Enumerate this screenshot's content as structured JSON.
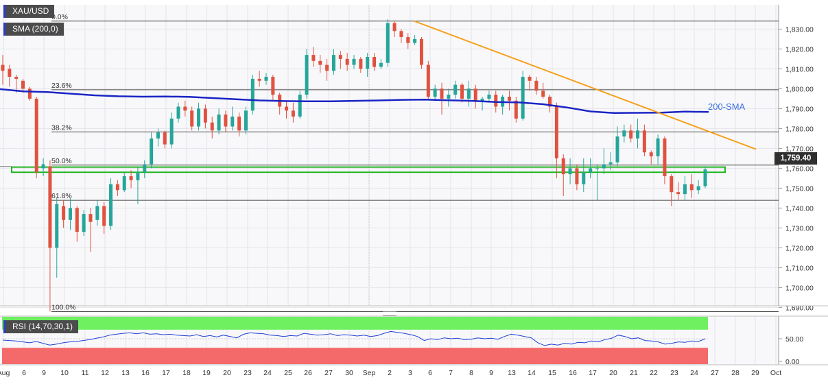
{
  "chart": {
    "symbol": "XAU/USD",
    "sma_legend": "SMA (200,0)",
    "sma_label": "200-SMA",
    "current_price_label": "1,759.40",
    "rsi_legend": "RSI (14,70,30,1)",
    "colors": {
      "bull": "#26a69a",
      "bear": "#e0523f",
      "sma": "#1a24c4",
      "trendline": "#f5a11a",
      "zone": "#21b521",
      "rsi_line": "#1f3fd4",
      "rsi_overbought": "#6ef060",
      "rsi_oversold": "#f46a6a"
    }
  },
  "chart_data": [
    {
      "type": "candlestick",
      "title": "XAU/USD",
      "ylim": [
        1685,
        1838
      ],
      "y_ticks": [
        "1,830.00",
        "1,820.00",
        "1,810.00",
        "1,800.00",
        "1,790.00",
        "1,780.00",
        "1,770.00",
        "1,760.00",
        "1,750.00",
        "1,740.00",
        "1,730.00",
        "1,720.00",
        "1,710.00",
        "1,700.00",
        "1,690.00"
      ],
      "x_ticks": [
        "Aug",
        "6",
        "9",
        "10",
        "11",
        "12",
        "13",
        "16",
        "17",
        "18",
        "19",
        "20",
        "23",
        "24",
        "25",
        "26",
        "27",
        "30",
        "Sep",
        "2",
        "3",
        "6",
        "7",
        "8",
        "9",
        "13",
        "14",
        "15",
        "16",
        "17",
        "20",
        "21",
        "22",
        "23",
        "24",
        "27",
        "28",
        "29",
        "Oct"
      ],
      "fibonacci": [
        {
          "label": "0.0%",
          "price": 1834.0
        },
        {
          "label": "23.6%",
          "price": 1799.5
        },
        {
          "label": "38.2%",
          "price": 1778.3
        },
        {
          "label": "50.0%",
          "price": 1761.6
        },
        {
          "label": "61.8%",
          "price": 1743.9
        },
        {
          "label": "100.0%",
          "price": 1687.9
        }
      ],
      "support_zone": [
        1758.0,
        1760.6
      ],
      "sma_200": [
        1799.8,
        1798.7,
        1798.3,
        1797.5,
        1796.7,
        1796.2,
        1796.0,
        1796.1,
        1795.9,
        1795.3,
        1794.7,
        1794.1,
        1793.8,
        1793.7,
        1793.7,
        1793.9,
        1794.1,
        1794.4,
        1794.5,
        1794.2,
        1793.9,
        1793.3,
        1793.1,
        1792.2,
        1790.6,
        1788.6,
        1787.8,
        1787.9,
        1788.0,
        1788.5,
        1788.3
      ],
      "trendline": {
        "from": 1834.0,
        "to": 1769.6
      },
      "candles": [
        [
          1812,
          1809,
          1817,
          1802
        ],
        [
          1810,
          1806,
          1812,
          1801
        ],
        [
          1806,
          1805,
          1807,
          1798
        ],
        [
          1804,
          1800,
          1805,
          1798
        ],
        [
          1800,
          1795,
          1801,
          1794
        ],
        [
          1795,
          1758,
          1796,
          1755
        ],
        [
          1760,
          1762,
          1765,
          1756
        ],
        [
          1761,
          1720,
          1764,
          1688
        ],
        [
          1720,
          1742,
          1745,
          1705
        ],
        [
          1741,
          1734,
          1744,
          1730
        ],
        [
          1734,
          1740,
          1745,
          1729
        ],
        [
          1740,
          1728,
          1741,
          1723
        ],
        [
          1728,
          1737,
          1739,
          1726
        ],
        [
          1737,
          1733,
          1740,
          1718
        ],
        [
          1734,
          1741,
          1744,
          1731
        ],
        [
          1741,
          1731,
          1743,
          1727
        ],
        [
          1731,
          1752,
          1755,
          1729
        ],
        [
          1752,
          1749,
          1754,
          1746
        ],
        [
          1749,
          1756,
          1758,
          1748
        ],
        [
          1756,
          1754,
          1759,
          1750
        ],
        [
          1754,
          1758,
          1761,
          1742
        ],
        [
          1758,
          1762,
          1764,
          1755
        ],
        [
          1762,
          1775,
          1778,
          1760
        ],
        [
          1775,
          1778,
          1780,
          1771
        ],
        [
          1778,
          1772,
          1779,
          1770
        ],
        [
          1772,
          1785,
          1788,
          1770
        ],
        [
          1785,
          1791,
          1793,
          1783
        ],
        [
          1791,
          1789,
          1794,
          1786
        ],
        [
          1789,
          1781,
          1791,
          1779
        ],
        [
          1781,
          1790,
          1793,
          1779
        ],
        [
          1790,
          1783,
          1792,
          1780
        ],
        [
          1783,
          1779,
          1786,
          1775
        ],
        [
          1779,
          1787,
          1790,
          1777
        ],
        [
          1787,
          1781,
          1789,
          1778
        ],
        [
          1781,
          1786,
          1791,
          1779
        ],
        [
          1786,
          1779,
          1788,
          1776
        ],
        [
          1779,
          1789,
          1791,
          1777
        ],
        [
          1789,
          1805,
          1807,
          1787
        ],
        [
          1805,
          1804,
          1809,
          1801
        ],
        [
          1804,
          1806,
          1808,
          1802
        ],
        [
          1806,
          1797,
          1807,
          1794
        ],
        [
          1797,
          1791,
          1798,
          1787
        ],
        [
          1791,
          1789,
          1794,
          1785
        ],
        [
          1789,
          1786,
          1793,
          1783
        ],
        [
          1786,
          1797,
          1799,
          1785
        ],
        [
          1797,
          1817,
          1820,
          1795
        ],
        [
          1817,
          1814,
          1821,
          1811
        ],
        [
          1814,
          1812,
          1817,
          1808
        ],
        [
          1812,
          1809,
          1815,
          1804
        ],
        [
          1809,
          1817,
          1820,
          1807
        ],
        [
          1817,
          1815,
          1819,
          1810
        ],
        [
          1815,
          1812,
          1818,
          1809
        ],
        [
          1812,
          1815,
          1817,
          1810
        ],
        [
          1815,
          1810,
          1816,
          1808
        ],
        [
          1810,
          1816,
          1818,
          1806
        ],
        [
          1816,
          1811,
          1818,
          1809
        ],
        [
          1811,
          1813,
          1815,
          1810
        ],
        [
          1813,
          1833,
          1835,
          1811
        ],
        [
          1833,
          1829,
          1834,
          1826
        ],
        [
          1829,
          1826,
          1830,
          1823
        ],
        [
          1826,
          1823,
          1828,
          1820
        ],
        [
          1823,
          1825,
          1827,
          1822
        ],
        [
          1825,
          1812,
          1826,
          1810
        ],
        [
          1812,
          1796,
          1814,
          1795
        ],
        [
          1796,
          1800,
          1802,
          1794
        ],
        [
          1800,
          1795,
          1803,
          1787
        ],
        [
          1795,
          1797,
          1800,
          1791
        ],
        [
          1797,
          1802,
          1804,
          1795
        ],
        [
          1802,
          1795,
          1803,
          1793
        ],
        [
          1795,
          1800,
          1804,
          1791
        ],
        [
          1800,
          1794,
          1802,
          1790
        ],
        [
          1794,
          1795,
          1796,
          1789
        ],
        [
          1795,
          1797,
          1799,
          1793
        ],
        [
          1797,
          1791,
          1799,
          1788
        ],
        [
          1791,
          1796,
          1797,
          1787
        ],
        [
          1796,
          1794,
          1799,
          1789
        ],
        [
          1794,
          1785,
          1796,
          1783
        ],
        [
          1785,
          1806,
          1809,
          1784
        ],
        [
          1806,
          1804,
          1807,
          1799
        ],
        [
          1804,
          1799,
          1806,
          1797
        ],
        [
          1799,
          1796,
          1803,
          1795
        ],
        [
          1796,
          1791,
          1797,
          1788
        ],
        [
          1791,
          1765,
          1793,
          1755
        ],
        [
          1765,
          1757,
          1767,
          1746
        ],
        [
          1757,
          1760,
          1765,
          1752
        ],
        [
          1760,
          1752,
          1762,
          1749
        ],
        [
          1752,
          1758,
          1765,
          1748
        ],
        [
          1758,
          1760,
          1765,
          1755
        ],
        [
          1760,
          1760,
          1762,
          1744
        ],
        [
          1760,
          1762,
          1770,
          1757
        ],
        [
          1762,
          1763,
          1768,
          1759
        ],
        [
          1763,
          1776,
          1781,
          1761
        ],
        [
          1776,
          1779,
          1782,
          1773
        ],
        [
          1779,
          1775,
          1782,
          1773
        ],
        [
          1775,
          1779,
          1785,
          1770
        ],
        [
          1779,
          1768,
          1782,
          1766
        ],
        [
          1768,
          1766,
          1769,
          1762
        ],
        [
          1766,
          1775,
          1777,
          1762
        ],
        [
          1775,
          1756,
          1776,
          1752
        ],
        [
          1756,
          1748,
          1757,
          1741
        ],
        [
          1748,
          1747,
          1753,
          1744
        ],
        [
          1747,
          1752,
          1756,
          1744
        ],
        [
          1752,
          1749,
          1757,
          1745
        ],
        [
          1749,
          1751,
          1754,
          1747
        ],
        [
          1751,
          1759.4,
          1761,
          1750
        ]
      ]
    },
    {
      "type": "line",
      "title": "RSI (14,70,30,1)",
      "ylim": [
        0,
        100
      ],
      "y_ticks": [
        "50.00",
        "0.00"
      ],
      "overbought": 70,
      "oversold": 30,
      "series": [
        {
          "name": "RSI (14,70,30,1)",
          "values": [
            47,
            46,
            45,
            43,
            41,
            44,
            40,
            36,
            38,
            41,
            43,
            44,
            46,
            48,
            51,
            54,
            58,
            60,
            62,
            63,
            61,
            63,
            60,
            61,
            59,
            60,
            58,
            57,
            56,
            59,
            55,
            57,
            54,
            58,
            55,
            52,
            60,
            63,
            62,
            61,
            58,
            57,
            55,
            57,
            56,
            62,
            60,
            58,
            59,
            61,
            57,
            59,
            58,
            56,
            58,
            55,
            57,
            62,
            66,
            64,
            62,
            59,
            55,
            46,
            50,
            48,
            52,
            50,
            51,
            48,
            49,
            52,
            50,
            51,
            49,
            55,
            60,
            58,
            55,
            52,
            41,
            35,
            38,
            36,
            40,
            38,
            42,
            41,
            45,
            43,
            48,
            51,
            58,
            55,
            50,
            52,
            46,
            45,
            43,
            38,
            40,
            43,
            42,
            45,
            44,
            50
          ]
        }
      ]
    }
  ]
}
